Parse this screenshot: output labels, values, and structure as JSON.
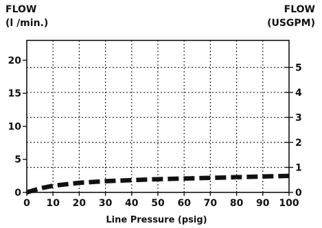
{
  "chart_data": {
    "type": "line",
    "left_axis_title": [
      "FLOW",
      "(l /min.)"
    ],
    "right_axis_title": [
      "FLOW",
      "(USGPM)"
    ],
    "xlabel": "Line Pressure (psig)",
    "xlim": [
      0,
      100
    ],
    "ylim_left": [
      0,
      23
    ],
    "ylim_right": [
      0,
      6.08
    ],
    "x_ticks": [
      0,
      10,
      20,
      30,
      40,
      50,
      60,
      70,
      80,
      90,
      100
    ],
    "y_ticks_left": [
      0,
      5,
      10,
      15,
      20
    ],
    "y_ticks_right": [
      0,
      1,
      2,
      3,
      4,
      5
    ],
    "grid": true,
    "series": [
      {
        "line_style": "dashed",
        "x": [
          0,
          5,
          10,
          20,
          30,
          40,
          50,
          60,
          70,
          80,
          90,
          100
        ],
        "y": [
          0,
          0.6,
          1.0,
          1.45,
          1.7,
          1.85,
          2.0,
          2.1,
          2.2,
          2.3,
          2.4,
          2.5
        ]
      }
    ]
  }
}
